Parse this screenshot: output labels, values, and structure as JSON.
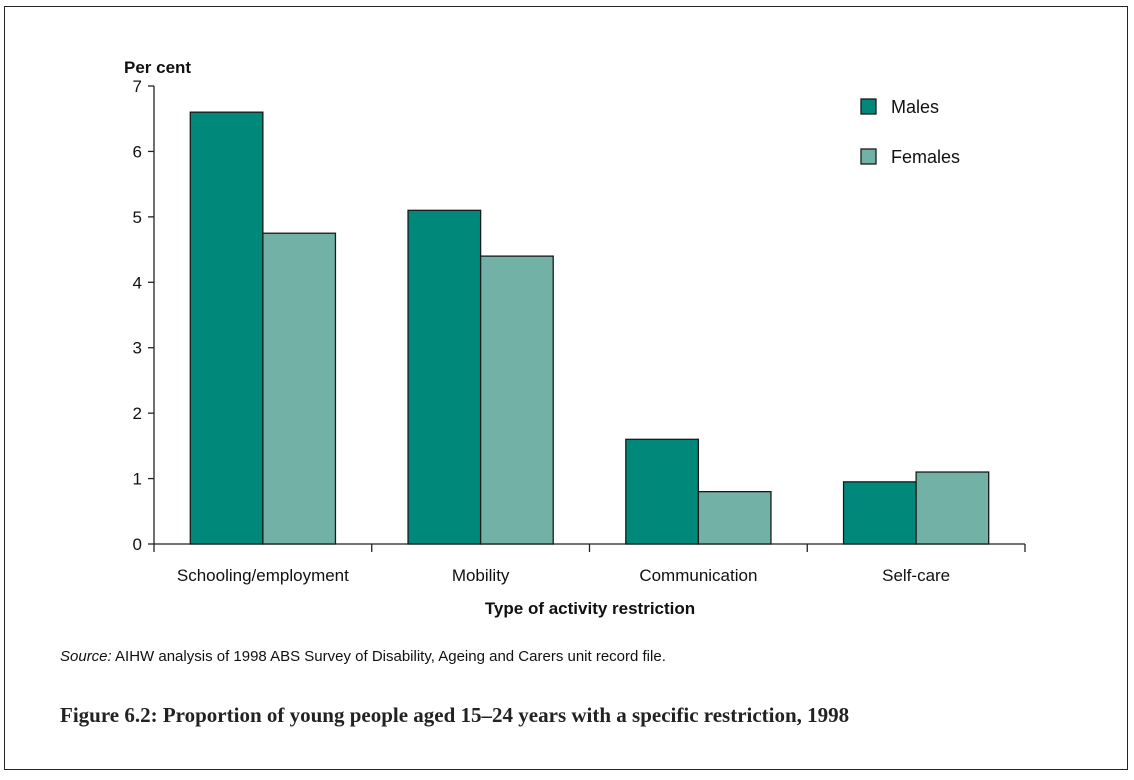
{
  "chart_data": {
    "type": "bar",
    "ylabel": "Per cent",
    "xlabel": "Type of activity restriction",
    "categories": [
      "Schooling/employment",
      "Mobility",
      "Communication",
      "Self-care"
    ],
    "series": [
      {
        "name": "Males",
        "values": [
          6.6,
          5.1,
          1.6,
          0.95
        ],
        "color": "#00897b"
      },
      {
        "name": "Females",
        "values": [
          4.75,
          4.4,
          0.8,
          1.1
        ],
        "color": "#72b2a6"
      }
    ],
    "ylim": [
      0,
      7
    ],
    "yticks": [
      0,
      1,
      2,
      3,
      4,
      5,
      6,
      7
    ],
    "grid": false,
    "legend": "top-right"
  },
  "source": {
    "label": "Source:",
    "text": " AIHW analysis of 1998 ABS Survey of Disability, Ageing and Carers unit record file."
  },
  "caption": "Figure 6.2: Proportion of young people aged 15–24 years with a specific restriction, 1998"
}
